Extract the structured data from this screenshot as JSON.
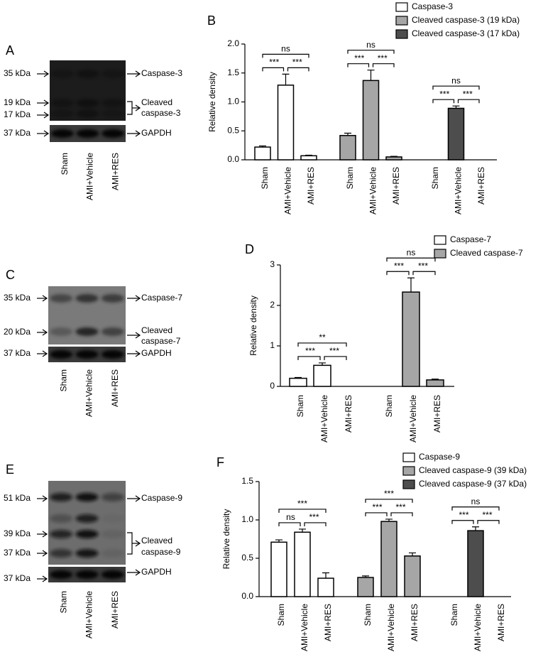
{
  "blots": [
    {
      "panel": "A",
      "markers": [
        "35 kDa",
        "19 kDa",
        "17 kDa",
        "37 kDa"
      ],
      "targets": [
        {
          "lines": [
            "Caspase-3"
          ]
        },
        {
          "lines": [
            "Cleaved",
            "caspase-3"
          ]
        },
        {
          "lines": [
            "GAPDH"
          ]
        }
      ],
      "lanes": [
        "Sham",
        "AMI+Vehicle",
        "AMI+RES"
      ]
    },
    {
      "panel": "C",
      "markers": [
        "35 kDa",
        "20 kDa",
        "37 kDa"
      ],
      "targets": [
        {
          "lines": [
            "Caspase-7"
          ]
        },
        {
          "lines": [
            "Cleaved",
            "caspase-7"
          ]
        },
        {
          "lines": [
            "GAPDH"
          ]
        }
      ],
      "lanes": [
        "Sham",
        "AMI+Vehicle",
        "AMI+RES"
      ]
    },
    {
      "panel": "E",
      "markers": [
        "51 kDa",
        "39 kDa",
        "37 kDa",
        "37 kDa"
      ],
      "targets": [
        {
          "lines": [
            "Caspase-9"
          ]
        },
        {
          "lines": [
            "Cleaved",
            "caspase-9"
          ]
        },
        {
          "lines": [
            "GAPDH"
          ]
        }
      ],
      "lanes": [
        "Sham",
        "AMI+Vehicle",
        "AMI+RES"
      ]
    }
  ],
  "chart_data": [
    {
      "type": "bar",
      "panel": "B",
      "ylabel": "Relative density",
      "categories": [
        "Sham",
        "AMI+Vehicle",
        "AMI+RES"
      ],
      "ylim": [
        0,
        2
      ],
      "yticks": [
        {
          "value": 0,
          "label": "0.0"
        },
        0.5,
        {
          "value": 1,
          "label": "1.0"
        },
        1.5,
        {
          "value": 2,
          "label": "2.0"
        }
      ],
      "series": [
        {
          "name": "Caspase-3",
          "color": "#ffffff",
          "values": [
            0.22,
            1.29,
            0.07
          ],
          "errors": [
            0.02,
            0.19,
            0.01
          ],
          "significance": [
            {
              "pair": [
                0,
                2
              ],
              "label": "ns"
            },
            {
              "pair": [
                0,
                1
              ],
              "label": "***"
            },
            {
              "pair": [
                1,
                2
              ],
              "label": "***"
            }
          ]
        },
        {
          "name": "Cleaved caspase-3 (19 kDa)",
          "color": "#a6a6a6",
          "values": [
            0.42,
            1.37,
            0.05
          ],
          "errors": [
            0.04,
            0.18,
            0.01
          ],
          "significance": [
            {
              "pair": [
                0,
                2
              ],
              "label": "ns"
            },
            {
              "pair": [
                0,
                1
              ],
              "label": "***"
            },
            {
              "pair": [
                1,
                2
              ],
              "label": "***"
            }
          ]
        },
        {
          "name": "Cleaved caspase-3 (17 kDa)",
          "color": "#4d4d4d",
          "values": [
            null,
            0.89,
            null
          ],
          "errors": [
            null,
            0.04,
            null
          ],
          "significance": [
            {
              "pair": [
                0,
                2
              ],
              "label": "ns"
            },
            {
              "pair": [
                0,
                1
              ],
              "label": "***"
            },
            {
              "pair": [
                1,
                2
              ],
              "label": "***"
            }
          ]
        }
      ]
    },
    {
      "type": "bar",
      "panel": "D",
      "ylabel": "Relative density",
      "categories": [
        "Sham",
        "AMI+Vehicle",
        "AMI+RES"
      ],
      "ylim": [
        0,
        3
      ],
      "yticks": [
        0,
        1,
        2,
        3
      ],
      "series": [
        {
          "name": "Caspase-7",
          "color": "#ffffff",
          "values": [
            0.2,
            0.52,
            null
          ],
          "errors": [
            0.02,
            0.06,
            null
          ],
          "significance": [
            {
              "pair": [
                0,
                2
              ],
              "label": "**"
            },
            {
              "pair": [
                0,
                1
              ],
              "label": "***"
            },
            {
              "pair": [
                1,
                2
              ],
              "label": "***"
            }
          ]
        },
        {
          "name": "Cleaved caspase-7",
          "color": "#a6a6a6",
          "values": [
            null,
            2.33,
            0.16
          ],
          "errors": [
            null,
            0.35,
            0.02
          ],
          "significance": [
            {
              "pair": [
                0,
                2
              ],
              "label": "ns"
            },
            {
              "pair": [
                0,
                1
              ],
              "label": "***"
            },
            {
              "pair": [
                1,
                2
              ],
              "label": "***"
            }
          ]
        }
      ]
    },
    {
      "type": "bar",
      "panel": "F",
      "ylabel": "Relative density",
      "categories": [
        "Sham",
        "AMI+Vehicle",
        "AMI+RES"
      ],
      "ylim": [
        0,
        1.5
      ],
      "yticks": [
        {
          "value": 0,
          "label": "0.0"
        },
        0.5,
        {
          "value": 1,
          "label": "1.0"
        },
        1.5
      ],
      "series": [
        {
          "name": "Caspase-9",
          "color": "#ffffff",
          "values": [
            0.71,
            0.84,
            0.24
          ],
          "errors": [
            0.03,
            0.04,
            0.07
          ],
          "significance": [
            {
              "pair": [
                0,
                2
              ],
              "label": "***"
            },
            {
              "pair": [
                0,
                1
              ],
              "label": "ns"
            },
            {
              "pair": [
                1,
                2
              ],
              "label": "***"
            }
          ]
        },
        {
          "name": "Cleaved caspase-9 (39 kDa)",
          "color": "#a6a6a6",
          "values": [
            0.25,
            0.98,
            0.53
          ],
          "errors": [
            0.02,
            0.03,
            0.04
          ],
          "significance": [
            {
              "pair": [
                0,
                2
              ],
              "label": "***"
            },
            {
              "pair": [
                0,
                1
              ],
              "label": "***"
            },
            {
              "pair": [
                1,
                2
              ],
              "label": "***"
            }
          ]
        },
        {
          "name": "Cleaved caspase-9 (37 kDa)",
          "color": "#4d4d4d",
          "values": [
            null,
            0.86,
            null
          ],
          "errors": [
            null,
            0.05,
            null
          ],
          "significance": [
            {
              "pair": [
                0,
                2
              ],
              "label": "ns"
            },
            {
              "pair": [
                0,
                1
              ],
              "label": "***"
            },
            {
              "pair": [
                1,
                2
              ],
              "label": "***"
            }
          ]
        }
      ]
    }
  ]
}
